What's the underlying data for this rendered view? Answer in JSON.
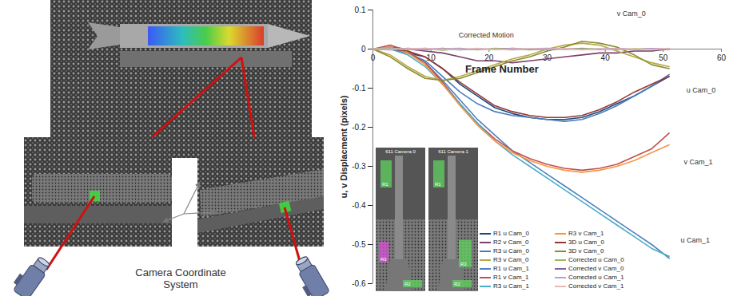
{
  "chart_data": {
    "type": "line",
    "xlabel": "Frame Number",
    "ylabel": "u, v Displacment (pixels)",
    "x": [
      0,
      3,
      6,
      9,
      12,
      15,
      18,
      21,
      24,
      27,
      30,
      33,
      36,
      39,
      42,
      45,
      48,
      51
    ],
    "xlim": [
      0,
      60
    ],
    "xticks": [
      0,
      10,
      20,
      30,
      40,
      50,
      60
    ],
    "ylim": [
      -0.6,
      0.1
    ],
    "yticks": [
      -0.6,
      -0.5,
      -0.4,
      -0.3,
      -0.2,
      -0.1,
      0,
      0.1
    ],
    "legend": "lower center",
    "series": [
      {
        "name": "R1 u Cam_0",
        "color": "#1f497d",
        "values": [
          0,
          0,
          -0.01,
          -0.02,
          -0.05,
          -0.09,
          -0.12,
          -0.15,
          -0.165,
          -0.175,
          -0.18,
          -0.18,
          -0.175,
          -0.16,
          -0.14,
          -0.12,
          -0.095,
          -0.07
        ]
      },
      {
        "name": "R2 v Cam_0",
        "color": "#7b3f6e",
        "values": [
          0,
          0.005,
          0,
          -0.005,
          -0.01,
          -0.02,
          -0.03,
          -0.03,
          -0.035,
          -0.03,
          -0.025,
          -0.02,
          -0.015,
          -0.01,
          -0.01,
          -0.005,
          -0.005,
          0
        ]
      },
      {
        "name": "R3 u Cam_0",
        "color": "#4a7ebb",
        "values": [
          0,
          0,
          -0.01,
          -0.03,
          -0.07,
          -0.11,
          -0.14,
          -0.16,
          -0.17,
          -0.175,
          -0.18,
          -0.185,
          -0.18,
          -0.165,
          -0.145,
          -0.12,
          -0.095,
          -0.065
        ]
      },
      {
        "name": "R3 v Cam_0",
        "color": "#b8a94a",
        "values": [
          0,
          -0.015,
          -0.045,
          -0.07,
          -0.08,
          -0.07,
          -0.055,
          -0.04,
          -0.025,
          -0.015,
          0,
          0.01,
          0.015,
          0.01,
          -0.005,
          -0.02,
          -0.035,
          -0.045
        ]
      },
      {
        "name": "R1 u Cam_1",
        "color": "#4f81bd",
        "values": [
          0,
          0,
          -0.01,
          -0.035,
          -0.08,
          -0.13,
          -0.18,
          -0.22,
          -0.26,
          -0.29,
          -0.32,
          -0.35,
          -0.38,
          -0.41,
          -0.44,
          -0.47,
          -0.5,
          -0.535
        ]
      },
      {
        "name": "R1 v Cam_1",
        "color": "#c0504d",
        "values": [
          0,
          0.01,
          -0.005,
          -0.035,
          -0.085,
          -0.14,
          -0.19,
          -0.23,
          -0.26,
          -0.28,
          -0.295,
          -0.305,
          -0.31,
          -0.305,
          -0.295,
          -0.275,
          -0.255,
          -0.215
        ]
      },
      {
        "name": "R3 u Cam_1",
        "color": "#4bacc6",
        "values": [
          0,
          0,
          -0.015,
          -0.045,
          -0.09,
          -0.14,
          -0.19,
          -0.235,
          -0.27,
          -0.3,
          -0.33,
          -0.36,
          -0.39,
          -0.42,
          -0.45,
          -0.48,
          -0.51,
          -0.53
        ]
      },
      {
        "name": "R3 v Cam_1",
        "color": "#f79646",
        "values": [
          0,
          0.005,
          -0.01,
          -0.04,
          -0.09,
          -0.145,
          -0.195,
          -0.235,
          -0.265,
          -0.285,
          -0.3,
          -0.31,
          -0.315,
          -0.31,
          -0.3,
          -0.285,
          -0.265,
          -0.245
        ]
      },
      {
        "name": "3D u Cam_0",
        "color": "#943634",
        "values": [
          0,
          0,
          -0.005,
          -0.02,
          -0.05,
          -0.085,
          -0.115,
          -0.145,
          -0.16,
          -0.17,
          -0.175,
          -0.175,
          -0.17,
          -0.155,
          -0.135,
          -0.11,
          -0.09,
          -0.07
        ]
      },
      {
        "name": "3D v Cam_0",
        "color": "#8c8c2e",
        "values": [
          0,
          -0.02,
          -0.05,
          -0.075,
          -0.08,
          -0.075,
          -0.06,
          -0.045,
          -0.03,
          -0.02,
          -0.005,
          0.005,
          0.02,
          0.015,
          0.005,
          -0.015,
          -0.04,
          -0.05
        ]
      },
      {
        "name": "Corrected u Cam_0",
        "color": "#9bbb59",
        "values": [
          0,
          0.003,
          -0.002,
          0.002,
          -0.003,
          0.001,
          -0.002,
          0.002,
          0,
          -0.002,
          0.001,
          -0.001,
          0.002,
          0,
          -0.002,
          0.001,
          0,
          -0.001
        ]
      },
      {
        "name": "Corrected v Cam_0",
        "color": "#8064a2",
        "values": [
          0,
          -0.002,
          0.002,
          -0.001,
          0.002,
          -0.002,
          0.001,
          -0.001,
          0.002,
          0,
          -0.002,
          0.001,
          0,
          -0.001,
          0.002,
          -0.001,
          0.001,
          0
        ]
      },
      {
        "name": "Corrected u Cam_1",
        "color": "#b3a2c7",
        "values": [
          0,
          0.001,
          0,
          -0.002,
          0.001,
          0.002,
          -0.001,
          0,
          -0.002,
          0.001,
          0.002,
          0,
          -0.001,
          0.001,
          0,
          -0.002,
          0.001,
          0.001
        ]
      },
      {
        "name": "Corrected v Cam_1",
        "color": "#e6b9b8",
        "values": [
          0,
          -0.001,
          0.001,
          0.002,
          0,
          -0.001,
          0.002,
          -0.002,
          0.001,
          0.001,
          -0.001,
          0.002,
          -0.002,
          0,
          0.001,
          0,
          -0.001,
          0.002
        ]
      }
    ],
    "annotations": [
      {
        "text": "Corrected Motion",
        "x": 19.5,
        "y": 0.035
      },
      {
        "text": "v Cam_0",
        "x": 44.5,
        "y": 0.09
      },
      {
        "text": "u Cam_0",
        "x": 56.5,
        "y": -0.105
      },
      {
        "text": "v Cam_1",
        "x": 56,
        "y": -0.29
      },
      {
        "text": "u Cam_1",
        "x": 55.5,
        "y": -0.49
      }
    ]
  },
  "diagram": {
    "caption": "Camera Coordinate System",
    "insets": [
      {
        "title": "611 Camera 0",
        "regions": [
          {
            "label": "R1",
            "color": "#5fd35f"
          },
          {
            "label": "R3",
            "color": "#d94fd9"
          },
          {
            "label": "R2",
            "color": "#5fd35f"
          }
        ]
      },
      {
        "title": "611 Camera 1",
        "regions": [
          {
            "label": "R1",
            "color": "#5fd35f"
          },
          {
            "label": "R3",
            "color": "#5fd35f"
          },
          {
            "label": "R2",
            "color": "#5fd35f"
          }
        ]
      }
    ]
  }
}
